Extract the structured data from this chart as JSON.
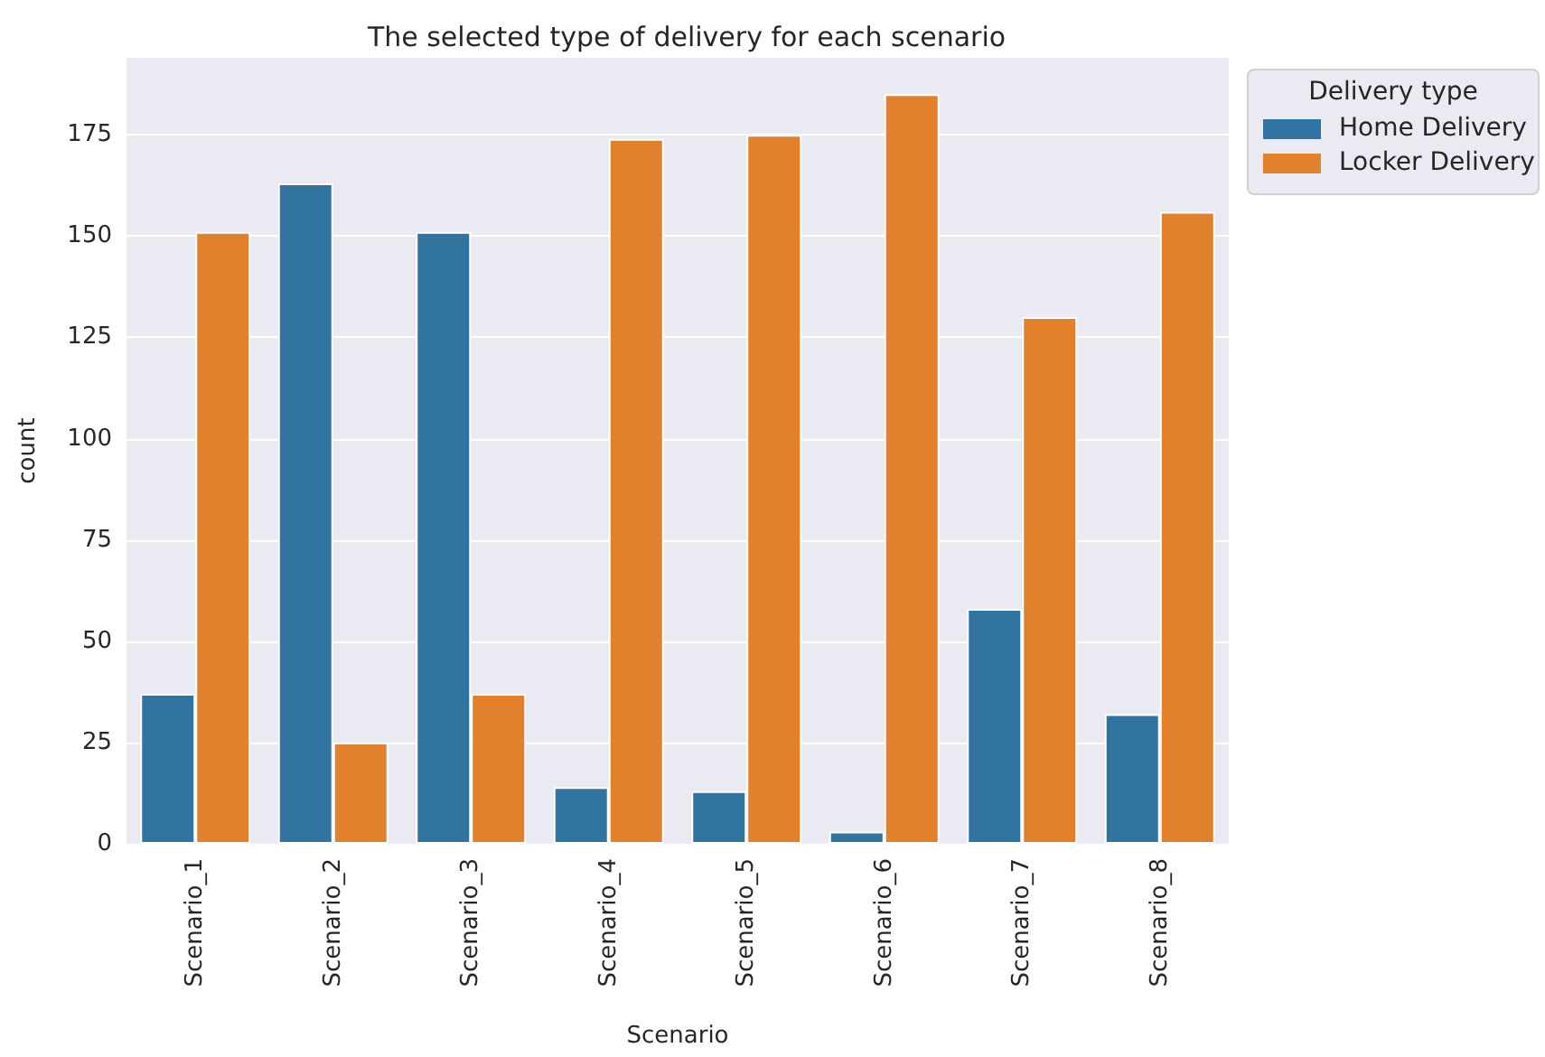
{
  "chart_data": {
    "type": "bar",
    "title": "The selected type of delivery for each scenario",
    "xlabel": "Scenario",
    "ylabel": "count",
    "legend_title": "Delivery type",
    "categories": [
      "Scenario_1",
      "Scenario_2",
      "Scenario_3",
      "Scenario_4",
      "Scenario_5",
      "Scenario_6",
      "Scenario_7",
      "Scenario_8"
    ],
    "series": [
      {
        "name": "Home Delivery",
        "color": "#3274a1",
        "values": [
          37,
          163,
          151,
          14,
          13,
          3,
          58,
          32
        ]
      },
      {
        "name": "Locker Delivery",
        "color": "#e1812c",
        "values": [
          151,
          25,
          37,
          174,
          175,
          185,
          130,
          156
        ]
      }
    ],
    "ylim": [
      0,
      194
    ],
    "yticks": [
      0,
      25,
      50,
      75,
      100,
      125,
      150,
      175
    ],
    "grid": "y",
    "legend": "top right"
  }
}
